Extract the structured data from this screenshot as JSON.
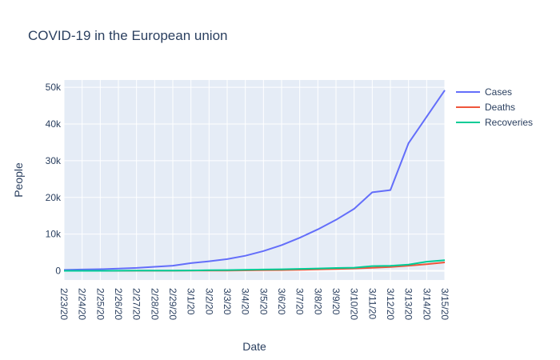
{
  "chart_data": {
    "type": "line",
    "title": "COVID-19 in the European union",
    "xlabel": "Date",
    "ylabel": "People",
    "categories": [
      "2/23/20",
      "2/24/20",
      "2/25/20",
      "2/26/20",
      "2/27/20",
      "2/28/20",
      "2/29/20",
      "3/1/20",
      "3/2/20",
      "3/3/20",
      "3/4/20",
      "3/5/20",
      "3/6/20",
      "3/7/20",
      "3/8/20",
      "3/9/20",
      "3/10/20",
      "3/11/20",
      "3/12/20",
      "3/13/20",
      "3/14/20",
      "3/15/20"
    ],
    "ylim": [
      -2500,
      52000
    ],
    "yticks": [
      0,
      10000,
      20000,
      30000,
      40000,
      50000
    ],
    "ytick_labels": [
      "0",
      "10k",
      "20k",
      "30k",
      "40k",
      "50k"
    ],
    "legend_position": "top-right",
    "grid": true,
    "series": [
      {
        "name": "Cases",
        "color": "#636efa",
        "values": [
          250,
          350,
          450,
          600,
          800,
          1100,
          1400,
          2100,
          2600,
          3200,
          4100,
          5400,
          7000,
          9000,
          11300,
          13900,
          16900,
          21400,
          22000,
          34800,
          42000,
          49200
        ]
      },
      {
        "name": "Deaths",
        "color": "#ef553b",
        "values": [
          5,
          8,
          12,
          15,
          20,
          25,
          30,
          40,
          55,
          80,
          110,
          150,
          200,
          280,
          380,
          480,
          640,
          830,
          1050,
          1400,
          1800,
          2300
        ]
      },
      {
        "name": "Recoveries",
        "color": "#00cc96",
        "values": [
          0,
          0,
          5,
          20,
          40,
          60,
          80,
          100,
          150,
          200,
          260,
          350,
          430,
          530,
          640,
          760,
          850,
          1300,
          1350,
          1700,
          2500,
          2900
        ]
      }
    ]
  }
}
